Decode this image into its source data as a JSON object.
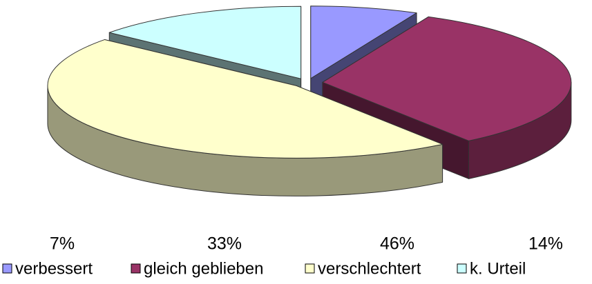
{
  "chart_data": {
    "type": "pie",
    "categories": [
      "verbessert",
      "gleich geblieben",
      "verschlechtert",
      "k. Urteil"
    ],
    "values": [
      7,
      33,
      46,
      14
    ],
    "value_labels": [
      "7%",
      "33%",
      "46%",
      "14%"
    ],
    "colors": [
      "#9999ff",
      "#993366",
      "#ffffcc",
      "#ccffff"
    ],
    "legend": "bottom"
  }
}
